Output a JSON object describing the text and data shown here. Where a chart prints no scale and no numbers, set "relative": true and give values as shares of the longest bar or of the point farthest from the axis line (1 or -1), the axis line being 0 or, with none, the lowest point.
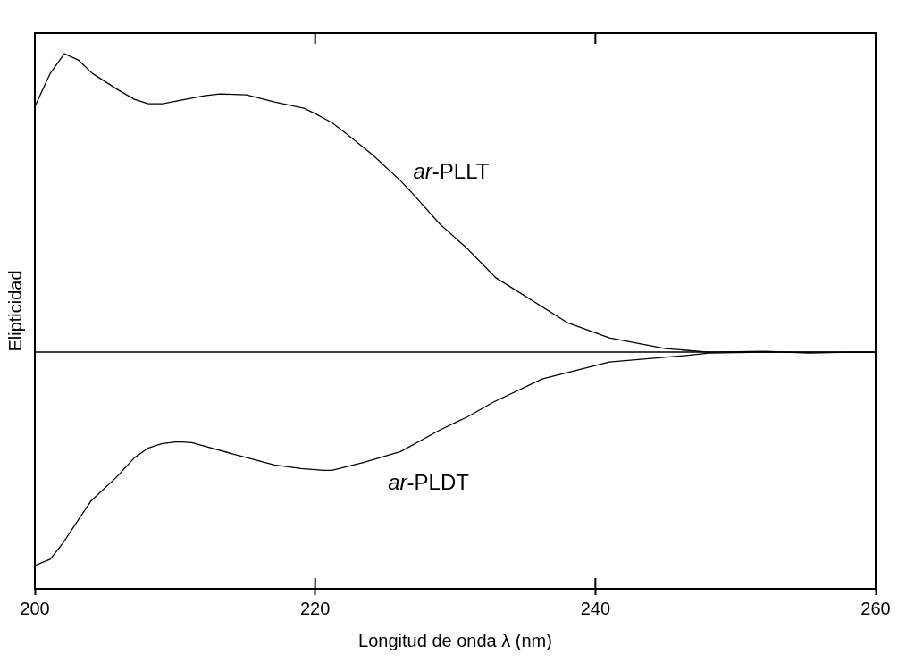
{
  "chart_data": {
    "type": "line",
    "xlabel": "Longitud de onda λ (nm)",
    "ylabel": "Elipticidad",
    "relative": true,
    "xlim": [
      200,
      260
    ],
    "xticks": [
      200,
      220,
      240,
      260
    ],
    "grid": false,
    "legend": false,
    "marker": "none",
    "line_style": "solid",
    "ref_lines": [
      {
        "axis": "y",
        "value": 0,
        "color": "#000000"
      }
    ],
    "series": [
      {
        "name": "ar-PLLT",
        "color": "#000000",
        "x": [
          200,
          201.1,
          202.1,
          203.1,
          204.1,
          206,
          207.1,
          208.1,
          209.1,
          212.1,
          213.2,
          215.1,
          217.1,
          219.2,
          220,
          221.2,
          222.2,
          224.1,
          226.1,
          227,
          228.9,
          230.9,
          232.9,
          238,
          241,
          245,
          248.1,
          252.1,
          255.2,
          258.2,
          260
        ],
        "values": [
          0.823,
          0.934,
          1,
          0.979,
          0.934,
          0.877,
          0.847,
          0.832,
          0.832,
          0.859,
          0.865,
          0.862,
          0.838,
          0.817,
          0.799,
          0.769,
          0.733,
          0.661,
          0.574,
          0.529,
          0.429,
          0.345,
          0.249,
          0.099,
          0.048,
          0.012,
          0,
          0.003,
          -0.003,
          0,
          0
        ]
      },
      {
        "name": "ar-PLDT",
        "color": "#000000",
        "x": [
          200,
          201.1,
          202,
          203.1,
          204,
          205.8,
          207.1,
          208.1,
          209.1,
          210.2,
          211.2,
          214.2,
          217.1,
          219,
          220.6,
          221.2,
          223.5,
          226.1,
          228.9,
          230.9,
          232.7,
          236.2,
          241,
          246.3,
          248.1,
          252,
          256,
          260
        ],
        "values": [
          -0.715,
          -0.694,
          -0.64,
          -0.562,
          -0.499,
          -0.42,
          -0.354,
          -0.321,
          -0.306,
          -0.3,
          -0.303,
          -0.342,
          -0.378,
          -0.39,
          -0.396,
          -0.396,
          -0.369,
          -0.333,
          -0.261,
          -0.216,
          -0.168,
          -0.09,
          -0.033,
          -0.012,
          -0.003,
          0,
          0,
          0
        ]
      }
    ]
  }
}
